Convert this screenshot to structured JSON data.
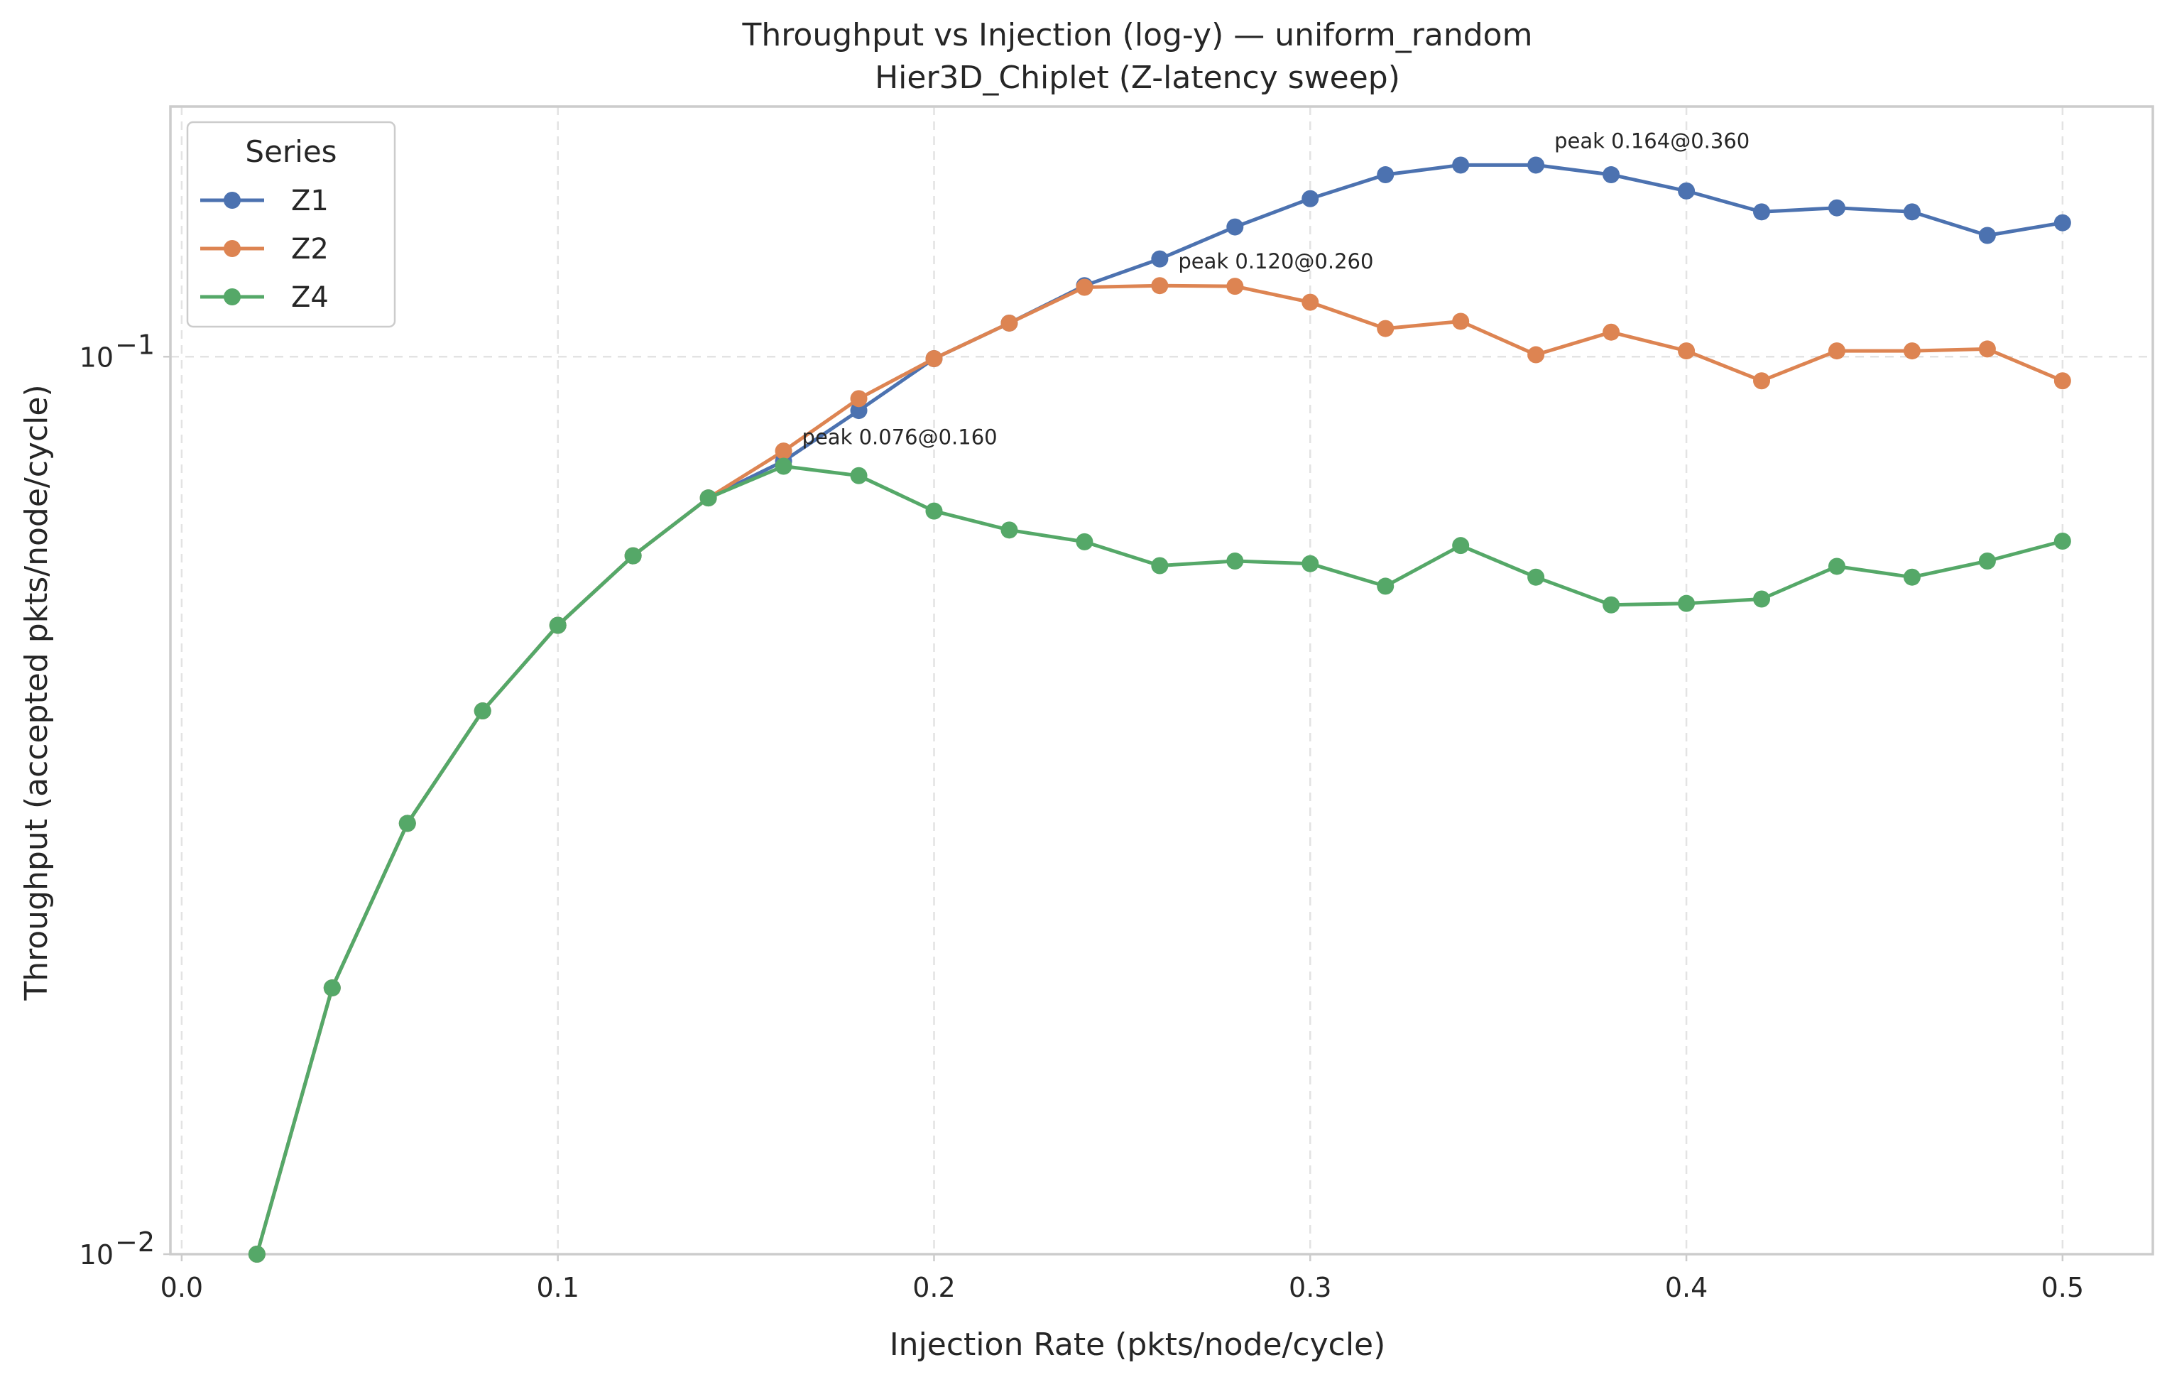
{
  "chart_data": {
    "type": "line",
    "title": "Throughput vs Injection (log-y) — uniform_random",
    "subtitle": "Hier3D_Chiplet (Z-latency sweep)",
    "xlabel": "Injection Rate (pkts/node/cycle)",
    "ylabel": "Throughput (accepted pkts/node/cycle)",
    "xlim": [
      -0.003,
      0.524
    ],
    "ylim": [
      0.01,
      0.19
    ],
    "yscale": "log",
    "grid": true,
    "x_ticks": [
      0.0,
      0.1,
      0.2,
      0.3,
      0.4,
      0.5
    ],
    "x_tick_labels": [
      "0.0",
      "0.1",
      "0.2",
      "0.3",
      "0.4",
      "0.5"
    ],
    "y_ticks": [
      0.01,
      0.1
    ],
    "y_tick_labels": [
      {
        "base": "10",
        "exp": "−2"
      },
      {
        "base": "10",
        "exp": "−1"
      }
    ],
    "legend": {
      "title": "Series",
      "position": "top-left"
    },
    "x": [
      0.02,
      0.04,
      0.06,
      0.08,
      0.1,
      0.12,
      0.14,
      0.16,
      0.18,
      0.2,
      0.22,
      0.24,
      0.26,
      0.28,
      0.3,
      0.32,
      0.34,
      0.36,
      0.38,
      0.4,
      0.42,
      0.44,
      0.46,
      0.48,
      0.5
    ],
    "series": [
      {
        "name": "Z1",
        "color": "#4c72b0",
        "values": [
          0.01,
          0.0198,
          0.0302,
          0.0403,
          0.0502,
          0.06,
          0.0696,
          0.0765,
          0.0871,
          0.0995,
          0.109,
          0.12,
          0.1285,
          0.1395,
          0.15,
          0.1595,
          0.1635,
          0.1635,
          0.1595,
          0.153,
          0.145,
          0.1465,
          0.145,
          0.1365,
          0.141
        ]
      },
      {
        "name": "Z2",
        "color": "#dd8452",
        "values": [
          0.01,
          0.0198,
          0.0302,
          0.0403,
          0.0502,
          0.06,
          0.0696,
          0.0785,
          0.0898,
          0.0995,
          0.109,
          0.1195,
          0.12,
          0.1198,
          0.115,
          0.1075,
          0.1095,
          0.1005,
          0.1065,
          0.1015,
          0.094,
          0.1015,
          0.1015,
          0.102,
          0.094
        ]
      },
      {
        "name": "Z4",
        "color": "#55a868",
        "values": [
          0.01,
          0.0198,
          0.0302,
          0.0403,
          0.0502,
          0.06,
          0.0696,
          0.0755,
          0.0737,
          0.0673,
          0.0641,
          0.0622,
          0.0585,
          0.0592,
          0.0588,
          0.0555,
          0.0616,
          0.0568,
          0.0529,
          0.0531,
          0.0537,
          0.0584,
          0.0568,
          0.0592,
          0.0623
        ]
      }
    ],
    "annotations": [
      {
        "text": "peak 0.164@0.360",
        "x": 0.36,
        "y": 0.1635
      },
      {
        "text": "peak 0.120@0.260",
        "x": 0.26,
        "y": 0.12
      },
      {
        "text": "peak 0.076@0.160",
        "x": 0.16,
        "y": 0.0765
      }
    ]
  }
}
